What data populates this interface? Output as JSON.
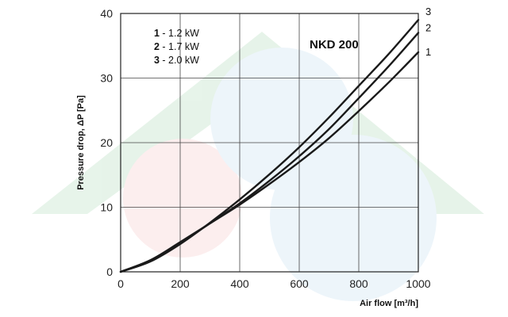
{
  "chart_data": {
    "type": "line",
    "title": "NKD 200",
    "xlabel": "Air flow [m³/h]",
    "ylabel": "Pressure drop, ΔP [Pa]",
    "xlim": [
      0,
      1000
    ],
    "ylim": [
      0,
      40
    ],
    "xticks": [
      "0",
      "200",
      "400",
      "600",
      "800",
      "1000"
    ],
    "yticks": [
      "0",
      "10",
      "20",
      "30",
      "40"
    ],
    "grid": true,
    "legend_position": "top-left",
    "legend": [
      {
        "number": "1",
        "text": " - 1.2 kW"
      },
      {
        "number": "2",
        "text": " - 1.7 kW"
      },
      {
        "number": "3",
        "text": " - 2.0 kW"
      }
    ],
    "series": [
      {
        "name": "1",
        "x": [
          0,
          100,
          200,
          300,
          400,
          500,
          600,
          700,
          800,
          900,
          1000
        ],
        "y": [
          0,
          1.8,
          4.6,
          7.5,
          10.4,
          13.6,
          17.0,
          20.7,
          24.9,
          29.3,
          34.0
        ]
      },
      {
        "name": "2",
        "x": [
          0,
          100,
          200,
          300,
          400,
          500,
          600,
          700,
          800,
          900,
          1000
        ],
        "y": [
          0,
          1.8,
          4.5,
          7.5,
          10.6,
          14.1,
          17.9,
          22.1,
          26.9,
          31.8,
          37.0
        ]
      },
      {
        "name": "3",
        "x": [
          0,
          100,
          200,
          300,
          400,
          500,
          600,
          700,
          800,
          900,
          1000
        ],
        "y": [
          0,
          1.6,
          4.3,
          7.6,
          11.2,
          15.1,
          19.3,
          23.9,
          28.8,
          33.7,
          39.0
        ]
      }
    ],
    "end_labels": [
      "3",
      "2",
      "1"
    ]
  }
}
